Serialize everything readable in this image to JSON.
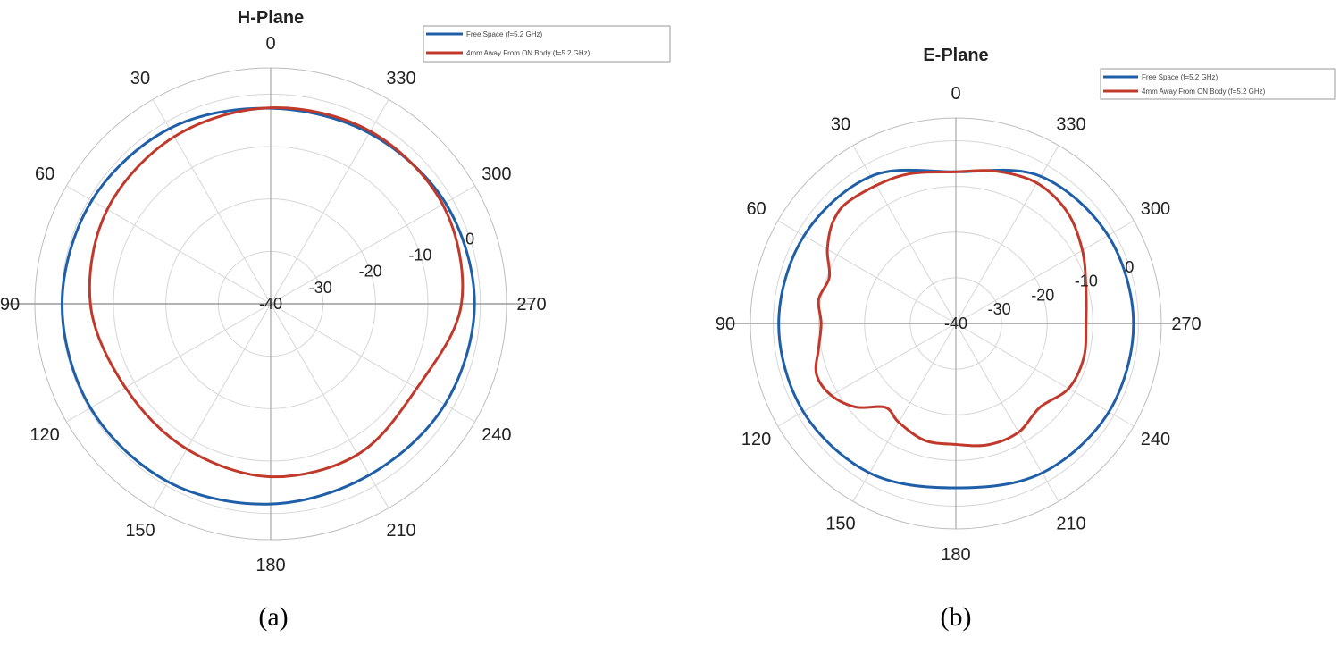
{
  "chart_data": [
    {
      "type": "polar-line",
      "title": "H-Plane",
      "panel_label": "(a)",
      "theta_ticks": [
        0,
        30,
        60,
        90,
        120,
        150,
        180,
        210,
        240,
        270,
        300,
        330
      ],
      "theta_direction": "counterclockwise",
      "theta_zero_location": "top",
      "r_ticks": [
        "-40",
        "-30",
        "-20",
        "-10",
        "0"
      ],
      "rlim": [
        -40,
        5
      ],
      "grid": true,
      "legend_position": "top-right",
      "series": [
        {
          "name": "Free Space (f=5.2 GHz)",
          "color": "#1f5fa8",
          "theta": [
            0,
            30,
            60,
            90,
            120,
            150,
            180,
            210,
            240,
            270,
            300,
            330,
            360
          ],
          "r": [
            -2.7,
            -1.4,
            -0.6,
            -0.2,
            -0.3,
            -0.8,
            -1.8,
            -2.3,
            -1.6,
            -1.1,
            -1.5,
            -2.4,
            -2.7
          ]
        },
        {
          "name": "4mm Away From ON Body (f=5.2 GHz)",
          "color": "#c0392b",
          "theta": [
            0,
            30,
            60,
            90,
            120,
            150,
            180,
            210,
            240,
            270,
            300,
            330,
            360
          ],
          "r": [
            -2.6,
            -3.2,
            -4.0,
            -5.6,
            -8.0,
            -8.0,
            -7.0,
            -6.8,
            -7.8,
            -3.6,
            -2.1,
            -2.0,
            -2.6
          ]
        }
      ]
    },
    {
      "type": "polar-line",
      "title": "E-Plane",
      "panel_label": "(b)",
      "theta_ticks": [
        0,
        30,
        60,
        90,
        120,
        150,
        180,
        210,
        240,
        270,
        300,
        330
      ],
      "theta_direction": "counterclockwise",
      "theta_zero_location": "top",
      "r_ticks": [
        "-40",
        "-30",
        "-20",
        "-10",
        "0"
      ],
      "rlim": [
        -40,
        5
      ],
      "grid": true,
      "legend_position": "top-right",
      "series": [
        {
          "name": "Free Space (f=5.2 GHz)",
          "color": "#1f5fa8",
          "theta": [
            0,
            30,
            60,
            90,
            120,
            150,
            180,
            210,
            240,
            270,
            300,
            330,
            360
          ],
          "r": [
            -6.8,
            -2.8,
            -1.6,
            -1.2,
            -1.4,
            -2.2,
            -4.0,
            -2.2,
            -1.3,
            -1.1,
            -1.5,
            -2.8,
            -6.8
          ]
        },
        {
          "name": "4mm Away From ON Body (f=5.2 GHz)",
          "color": "#c0392b",
          "theta": [
            0,
            20,
            40,
            50,
            60,
            70,
            80,
            90,
            100,
            110,
            120,
            130,
            140,
            150,
            165,
            180,
            195,
            210,
            225,
            240,
            255,
            270,
            285,
            300,
            315,
            330,
            345,
            360
          ],
          "r": [
            -6.8,
            -5.5,
            -4.5,
            -5.0,
            -7.5,
            -10.5,
            -9.5,
            -10.5,
            -9.5,
            -7.5,
            -8.5,
            -11.5,
            -16.0,
            -15.0,
            -13.5,
            -13.5,
            -12.5,
            -12.5,
            -14.0,
            -11.5,
            -11.0,
            -11.5,
            -10.5,
            -8.0,
            -5.5,
            -4.5,
            -5.5,
            -6.8
          ]
        }
      ]
    }
  ]
}
